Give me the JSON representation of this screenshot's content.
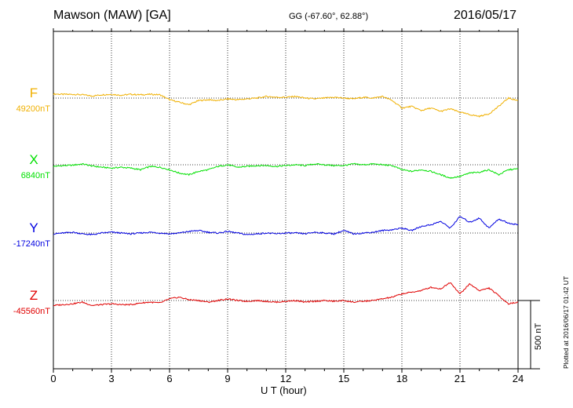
{
  "header": {
    "title": "Mawson (MAW)  [GA]",
    "coords": "GG (-67.60°,  62.88°)",
    "date": "2016/05/17"
  },
  "footer": {
    "plotted": "Plotted at 2016/06/17 01:42 UT"
  },
  "chart_data": {
    "type": "line",
    "xlabel": "U T (hour)",
    "xlim": [
      0,
      24
    ],
    "xticks": [
      "0",
      "3",
      "6",
      "9",
      "12",
      "15",
      "18",
      "21",
      "24"
    ],
    "scale_label": "500 nT",
    "grid": true,
    "series": [
      {
        "name": "F",
        "baseline": "49200nT",
        "color": "#f0b000",
        "x": [
          0,
          0.5,
          1,
          1.5,
          2,
          2.5,
          3,
          3.5,
          4,
          4.5,
          5,
          5.5,
          6,
          6.5,
          7,
          7.5,
          8,
          8.5,
          9,
          9.5,
          10,
          10.5,
          11,
          11.5,
          12,
          12.5,
          13,
          13.5,
          14,
          14.5,
          15,
          15.5,
          16,
          16.5,
          17,
          17.5,
          18,
          18.5,
          19,
          19.5,
          20,
          20.5,
          21,
          21.5,
          22,
          22.5,
          23,
          23.5,
          24
        ],
        "y": [
          50,
          45,
          45,
          40,
          25,
          40,
          45,
          35,
          45,
          40,
          45,
          40,
          -20,
          -50,
          -80,
          -30,
          -20,
          -30,
          -10,
          -20,
          -10,
          0,
          20,
          10,
          10,
          20,
          0,
          -10,
          0,
          10,
          0,
          -10,
          10,
          0,
          20,
          -30,
          -120,
          -100,
          -150,
          -120,
          -160,
          -130,
          -170,
          -200,
          -220,
          -190,
          -100,
          0,
          -30
        ]
      },
      {
        "name": "X",
        "baseline": "6840nT",
        "color": "#00e000",
        "x": [
          0,
          0.5,
          1,
          1.5,
          2,
          2.5,
          3,
          3.5,
          4,
          4.5,
          5,
          5.5,
          6,
          6.5,
          7,
          7.5,
          8,
          8.5,
          9,
          9.5,
          10,
          10.5,
          11,
          11.5,
          12,
          12.5,
          13,
          13.5,
          14,
          14.5,
          15,
          15.5,
          16,
          16.5,
          17,
          17.5,
          18,
          18.5,
          19,
          19.5,
          20,
          20.5,
          21,
          21.5,
          22,
          22.5,
          23,
          23.5,
          24
        ],
        "y": [
          -20,
          -10,
          -5,
          10,
          -15,
          -30,
          -40,
          -30,
          -40,
          -60,
          -20,
          -30,
          -60,
          -100,
          -120,
          -80,
          -60,
          -20,
          0,
          -30,
          -20,
          -10,
          -10,
          -20,
          -10,
          0,
          -10,
          10,
          0,
          -10,
          -10,
          10,
          0,
          10,
          0,
          -10,
          -60,
          -80,
          -60,
          -80,
          -120,
          -160,
          -140,
          -100,
          -90,
          -60,
          -120,
          -60,
          -50
        ]
      },
      {
        "name": "Y",
        "baseline": "-17240nT",
        "color": "#0000e0",
        "x": [
          0,
          0.5,
          1,
          1.5,
          2,
          2.5,
          3,
          3.5,
          4,
          4.5,
          5,
          5.5,
          6,
          6.5,
          7,
          7.5,
          8,
          8.5,
          9,
          9.5,
          10,
          10.5,
          11,
          11.5,
          12,
          12.5,
          13,
          13.5,
          14,
          14.5,
          15,
          15.5,
          16,
          16.5,
          17,
          17.5,
          18,
          18.5,
          19,
          19.5,
          20,
          20.5,
          21,
          21.5,
          22,
          22.5,
          23,
          23.5,
          24
        ],
        "y": [
          -10,
          0,
          10,
          -10,
          -20,
          0,
          10,
          0,
          -10,
          0,
          10,
          0,
          -10,
          0,
          20,
          30,
          10,
          0,
          20,
          0,
          -20,
          -10,
          0,
          -10,
          0,
          0,
          -10,
          10,
          0,
          -10,
          30,
          -10,
          0,
          10,
          30,
          40,
          60,
          30,
          80,
          100,
          140,
          60,
          200,
          130,
          180,
          60,
          170,
          120,
          100
        ]
      },
      {
        "name": "Z",
        "baseline": "-45560nT",
        "color": "#e00000",
        "x": [
          0,
          0.5,
          1,
          1.5,
          2,
          2.5,
          3,
          3.5,
          4,
          4.5,
          5,
          5.5,
          6,
          6.5,
          7,
          7.5,
          8,
          8.5,
          9,
          9.5,
          10,
          10.5,
          11,
          11.5,
          12,
          12.5,
          13,
          13.5,
          14,
          14.5,
          15,
          15.5,
          16,
          16.5,
          17,
          17.5,
          18,
          18.5,
          19,
          19.5,
          20,
          20.5,
          21,
          21.5,
          22,
          22.5,
          23,
          23.5,
          24
        ],
        "y": [
          -60,
          -50,
          -40,
          -20,
          -60,
          -50,
          -40,
          -50,
          -50,
          -30,
          -20,
          -30,
          20,
          40,
          10,
          0,
          -20,
          0,
          20,
          0,
          -10,
          0,
          -10,
          -20,
          -10,
          0,
          -20,
          -10,
          0,
          -10,
          0,
          -20,
          -10,
          0,
          20,
          40,
          80,
          100,
          120,
          160,
          140,
          220,
          80,
          200,
          120,
          150,
          60,
          -40,
          -20
        ]
      }
    ]
  }
}
